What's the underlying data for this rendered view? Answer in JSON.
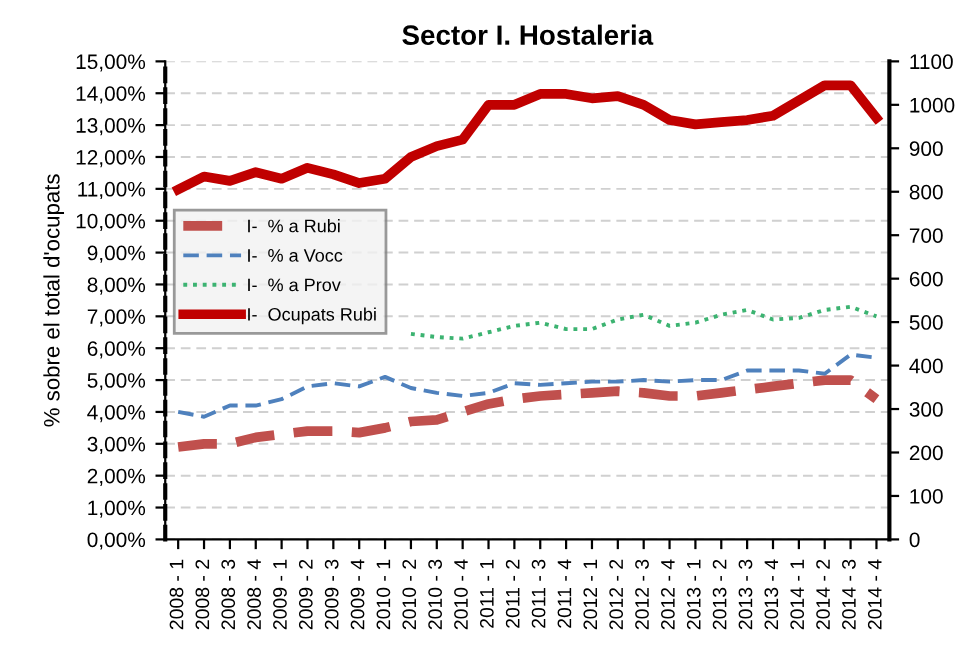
{
  "chart_data": {
    "type": "line",
    "title": "Sector I. Hostaleria",
    "ylabel": "% sobre el total d'ocupats",
    "categories": [
      "2008 - 1",
      "2008 - 2",
      "2008 - 3",
      "2008 - 4",
      "2009 - 1",
      "2009 - 2",
      "2009 - 3",
      "2009 - 4",
      "2010 - 1",
      "2010 - 2",
      "2010 - 3",
      "2010 - 4",
      "2011 - 1",
      "2011 - 2",
      "2011 - 3",
      "2011 - 4",
      "2012 - 1",
      "2012 - 2",
      "2012 - 3",
      "2012 - 4",
      "2013 - 1",
      "2013 - 2",
      "2013 - 3",
      "2013 - 4",
      "2014 - 1",
      "2014 - 2",
      "2014 - 3",
      "2014 - 4"
    ],
    "series": [
      {
        "name": "I-  % a Rubi",
        "color": "#c0504d",
        "line_style": "dashed",
        "values": [
          2.9,
          3.0,
          3.0,
          3.2,
          3.3,
          3.4,
          3.4,
          3.35,
          3.5,
          3.7,
          3.75,
          4.0,
          4.25,
          4.4,
          4.5,
          4.55,
          4.6,
          4.65,
          4.6,
          4.5,
          4.5,
          4.6,
          4.7,
          4.8,
          4.9,
          5.0,
          5.0,
          4.4
        ]
      },
      {
        "name": "I-  % a Vocc",
        "color": "#4f81bd",
        "line_style": "dashed",
        "values": [
          4.0,
          3.85,
          4.2,
          4.2,
          4.4,
          4.8,
          4.9,
          4.8,
          5.1,
          4.75,
          4.6,
          4.5,
          4.6,
          4.9,
          4.85,
          4.9,
          4.95,
          4.95,
          5.0,
          4.95,
          5.0,
          5.0,
          5.3,
          5.3,
          5.3,
          5.2,
          5.8,
          5.7
        ]
      },
      {
        "name": "I-  % a Prov",
        "color": "#3cb371",
        "line_style": "dotted",
        "values": [
          null,
          null,
          null,
          null,
          null,
          null,
          null,
          null,
          null,
          6.45,
          6.35,
          6.3,
          6.5,
          6.7,
          6.8,
          6.6,
          6.6,
          6.9,
          7.05,
          6.7,
          6.8,
          7.05,
          7.2,
          6.9,
          6.95,
          7.2,
          7.3,
          7.0
        ]
      },
      {
        "name": "I-  Ocupats Rubi",
        "color": "#c00000",
        "line_style": "solid",
        "axis": "y2",
        "values": [
          805,
          835,
          825,
          845,
          830,
          855,
          840,
          820,
          830,
          880,
          905,
          920,
          1000,
          1000,
          1025,
          1025,
          1015,
          1020,
          1000,
          965,
          955,
          960,
          965,
          975,
          1010,
          1045,
          1045,
          970
        ]
      }
    ],
    "ylim": [
      0,
      15
    ],
    "yticks": [
      {
        "value": 0,
        "label": "0,00%"
      },
      {
        "value": 1,
        "label": "1,00%"
      },
      {
        "value": 2,
        "label": "2,00%"
      },
      {
        "value": 3,
        "label": "3,00%"
      },
      {
        "value": 4,
        "label": "4,00%"
      },
      {
        "value": 5,
        "label": "5,00%"
      },
      {
        "value": 6,
        "label": "6,00%"
      },
      {
        "value": 7,
        "label": "7,00%"
      },
      {
        "value": 8,
        "label": "8,00%"
      },
      {
        "value": 9,
        "label": "9,00%"
      },
      {
        "value": 10,
        "label": "10,00%"
      },
      {
        "value": 11,
        "label": "11,00%"
      },
      {
        "value": 12,
        "label": "12,00%"
      },
      {
        "value": 13,
        "label": "13,00%"
      },
      {
        "value": 14,
        "label": "14,00%"
      },
      {
        "value": 15,
        "label": "15,00%"
      }
    ],
    "y2lim": [
      0,
      1100
    ],
    "y2ticks": [
      0,
      100,
      200,
      300,
      400,
      500,
      600,
      700,
      800,
      900,
      1000,
      1100
    ],
    "grid": "y",
    "legend": "center left",
    "marker": "none"
  }
}
